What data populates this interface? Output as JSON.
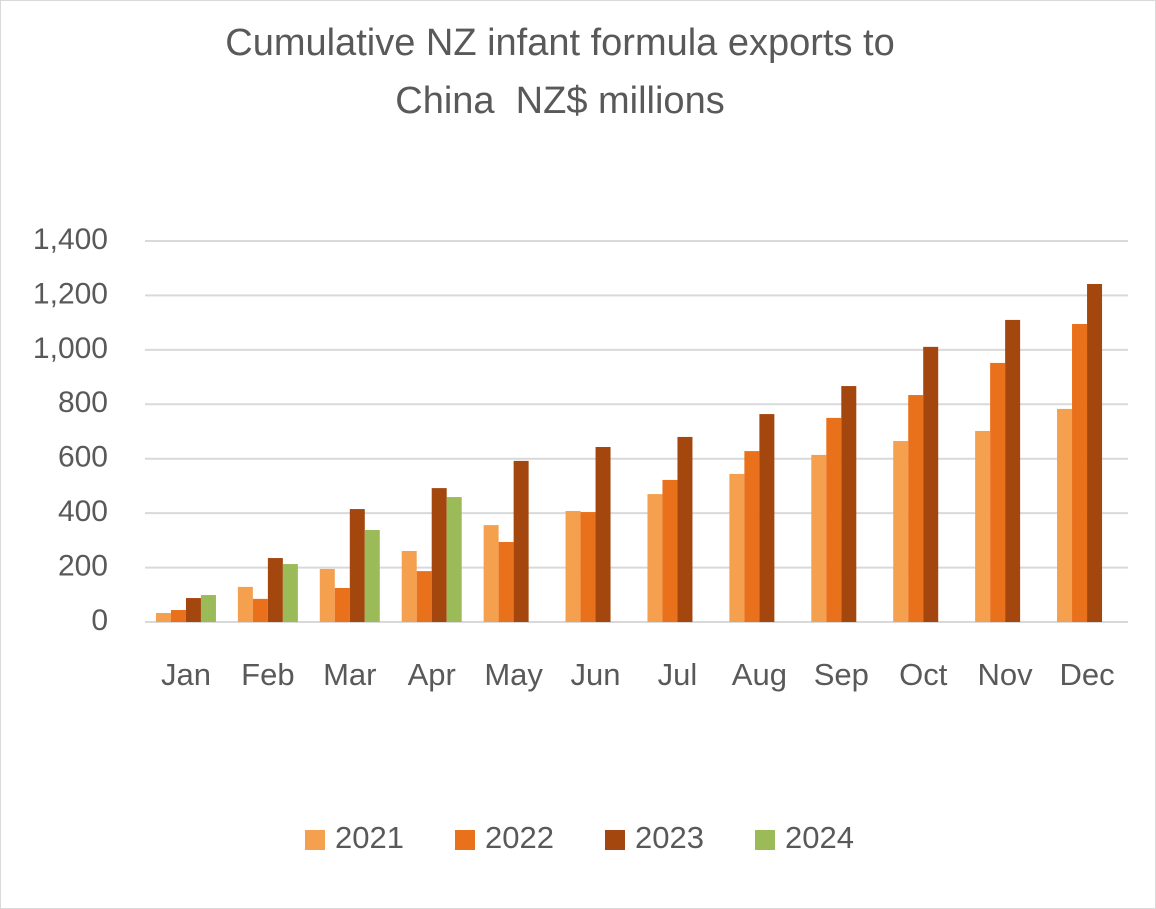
{
  "chart_data": {
    "type": "bar",
    "title": [
      "Cumulative NZ infant formula exports to",
      "China  NZ$ millions"
    ],
    "categories": [
      "Jan",
      "Feb",
      "Mar",
      "Apr",
      "May",
      "Jun",
      "Jul",
      "Aug",
      "Sep",
      "Oct",
      "Nov",
      "Dec"
    ],
    "series": [
      {
        "name": "2021",
        "color": "#f4a04f",
        "values": [
          33,
          129,
          195,
          261,
          356,
          408,
          470,
          544,
          614,
          665,
          702,
          783
        ]
      },
      {
        "name": "2022",
        "color": "#e9711c",
        "values": [
          44,
          85,
          125,
          187,
          294,
          404,
          522,
          628,
          750,
          834,
          952,
          1095
        ]
      },
      {
        "name": "2023",
        "color": "#a4470f",
        "values": [
          88,
          235,
          415,
          492,
          592,
          643,
          680,
          764,
          867,
          1011,
          1110,
          1242
        ]
      },
      {
        "name": "2024",
        "color": "#9bbb59",
        "values": [
          99,
          213,
          338,
          459,
          null,
          null,
          null,
          null,
          null,
          null,
          null,
          null
        ]
      }
    ],
    "ylim": [
      0,
      1400
    ],
    "yticks": [
      0,
      200,
      400,
      600,
      800,
      {
        "value": 1000,
        "label": "1,000"
      },
      {
        "value": 1200,
        "label": "1,200"
      },
      {
        "value": 1400,
        "label": "1,400"
      }
    ],
    "grid": true,
    "legend": "bottom"
  }
}
